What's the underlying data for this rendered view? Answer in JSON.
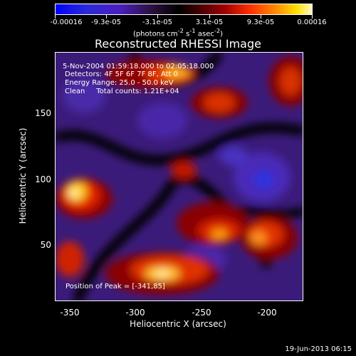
{
  "colorbar": {
    "labels": [
      "-0.00016",
      "-9.3e-05",
      "-3.1e-05",
      "3.1e-05",
      "9.3e-05",
      "0.00016"
    ],
    "unit_parts": [
      "(photons cm",
      "-2",
      " s",
      "-1",
      " asec",
      "-2",
      ")"
    ]
  },
  "title": "Reconstructed RHESSI Image",
  "annotations": {
    "time": "5-Nov-2004 01:59:18.000 to 02:05:18.000",
    "detectors": "Detectors: 4F 5F 6F 7F 8F, Att 0",
    "energy": "Energy Range: 25.0 - 50.0 keV",
    "clean": "Clean     Total counts: 1.21E+04",
    "peak": "Position of Peak = [-341,85]"
  },
  "axes": {
    "xlabel": "Heliocentric X (arcsec)",
    "ylabel": "Heliocentric Y (arcsec)",
    "xticks": [
      "-350",
      "-300",
      "-250",
      "-200"
    ],
    "yticks": [
      "150",
      "100",
      "50"
    ]
  },
  "timestamp": "19-Jun-2013 06:15"
}
